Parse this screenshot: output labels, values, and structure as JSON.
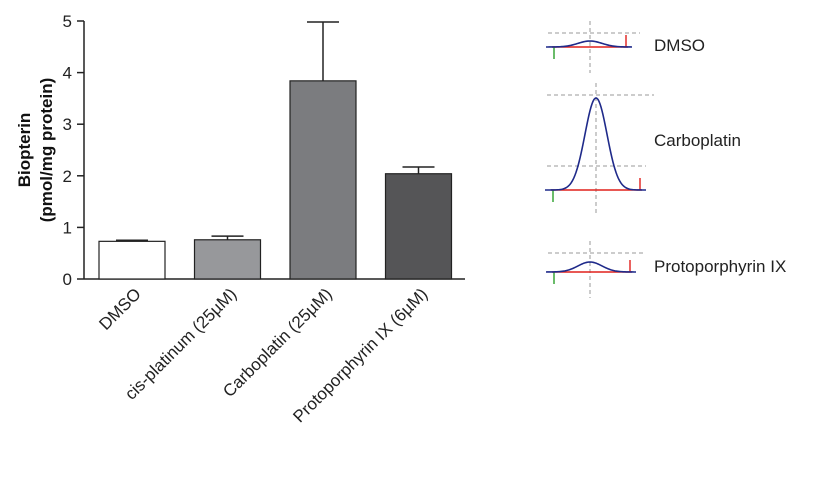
{
  "chart_data": {
    "type": "bar",
    "categories": [
      "DMSO",
      "cis-platinum (25µM)",
      "Carboplatin (25µM)",
      "Protoporphyrin IX (6µM)"
    ],
    "values": [
      0.73,
      0.76,
      3.84,
      2.04
    ],
    "errors": [
      0.02,
      0.07,
      1.14,
      0.13
    ],
    "bar_colors": [
      "#ffffff",
      "#97989b",
      "#7b7c7f",
      "#555557"
    ],
    "ylabel_line1": "Biopterin",
    "ylabel_line2": "(pmol/mg  protein)",
    "ylim": [
      0,
      5
    ],
    "yticks": [
      0,
      1,
      2,
      3,
      4,
      5
    ],
    "grid": false,
    "traces": [
      {
        "label": "DMSO",
        "peak": 0.25
      },
      {
        "label": "Carboplatin",
        "peak": 1.0
      },
      {
        "label": "Protoporphyrin IX",
        "peak": 0.4
      }
    ],
    "trace_line_color": "#1f2a8a",
    "trace_baseline_color": "#e0201c",
    "trace_marker_color": "#2aa02a",
    "trace_guide_color": "#9a9a9a"
  }
}
